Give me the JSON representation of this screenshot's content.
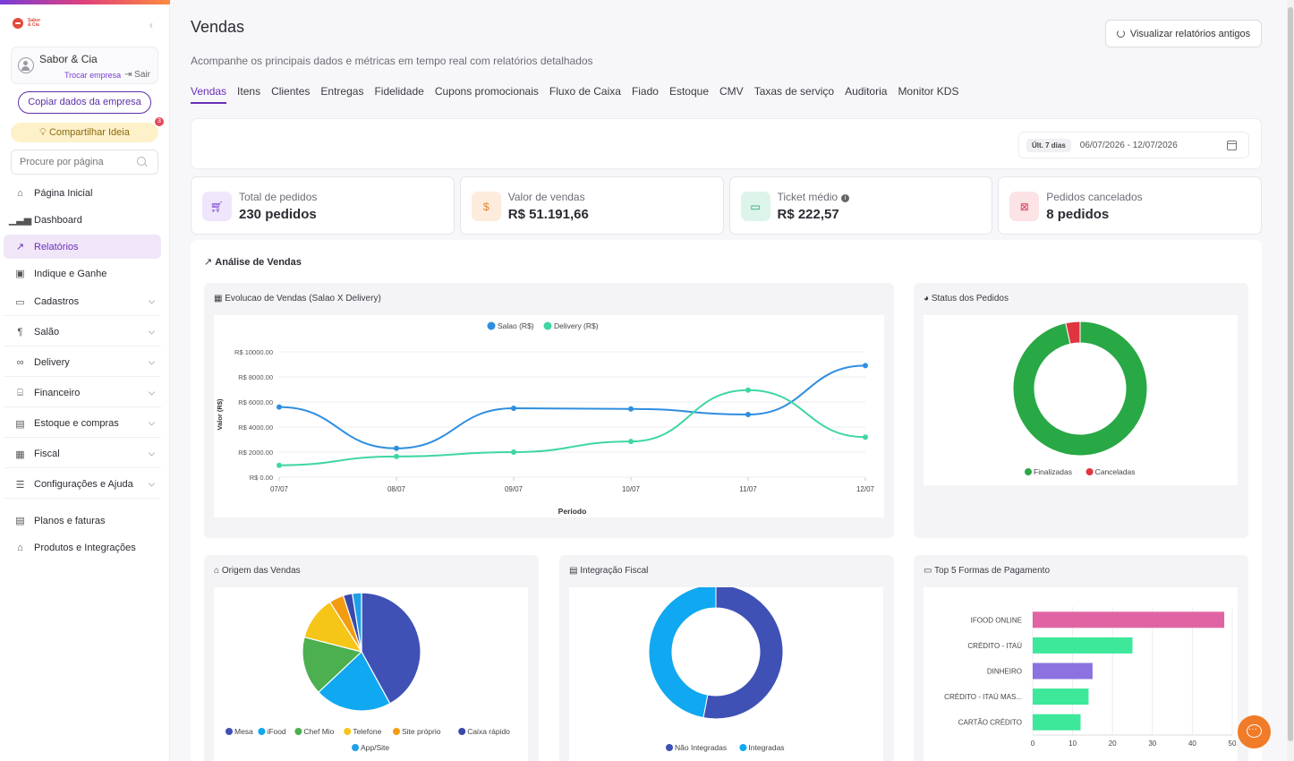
{
  "sidebar": {
    "brand_text": "Sabor & Cia",
    "company_name": "Sabor & Cia",
    "switch_label": "Trocar empresa",
    "exit_label": "Sair",
    "copy_label": "Copiar dados da empresa",
    "share_label": "Compartilhar Ideia",
    "share_badge": "3",
    "search_placeholder": "Procure por página",
    "items": [
      {
        "label": "Página Inicial"
      },
      {
        "label": "Dashboard"
      },
      {
        "label": "Relatórios"
      },
      {
        "label": "Indique e Ganhe"
      },
      {
        "label": "Cadastros"
      },
      {
        "label": "Salão"
      },
      {
        "label": "Delivery"
      },
      {
        "label": "Financeiro"
      },
      {
        "label": "Estoque e compras"
      },
      {
        "label": "Fiscal"
      },
      {
        "label": "Configurações e Ajuda"
      },
      {
        "label": "Planos e faturas"
      },
      {
        "label": "Produtos e Integrações"
      }
    ]
  },
  "header": {
    "title": "Vendas",
    "subtitle": "Acompanhe os principais dados e métricas em tempo real com relatórios detalhados",
    "old_reports_label": "Visualizar relatórios antigos"
  },
  "tabs": [
    "Vendas",
    "Itens",
    "Clientes",
    "Entregas",
    "Fidelidade",
    "Cupons promocionais",
    "Fluxo de Caixa",
    "Fiado",
    "Estoque",
    "CMV",
    "Taxas de serviço",
    "Auditoria",
    "Monitor KDS"
  ],
  "filter": {
    "chip": "Últ. 7 dias",
    "range": "06/07/2026 - 12/07/2026"
  },
  "kpis": [
    {
      "label": "Total de pedidos",
      "value": "230 pedidos",
      "color": "#7a3dd8",
      "bg": "#efe6fb"
    },
    {
      "label": "Valor de vendas",
      "value": "R$ 51.191,66",
      "color": "#e0832a",
      "bg": "#fdebdc"
    },
    {
      "label": "Ticket médio",
      "value": "R$ 222,57",
      "color": "#1f9a73",
      "bg": "#dcf4ea"
    },
    {
      "label": "Pedidos cancelados",
      "value": "8 pedidos",
      "color": "#d6425a",
      "bg": "#fbe3e6"
    }
  ],
  "analysis": {
    "title": "Análise de Vendas",
    "evolution_title": "Evolucao de Vendas (Salao X Delivery)",
    "status_title": "Status dos Pedidos",
    "origin_title": "Origem das Vendas",
    "fiscal_title": "Integração Fiscal",
    "payment_title": "Top 5 Formas de Pagamento"
  },
  "chart_data": [
    {
      "type": "line",
      "title": "Evolucao de Vendas (Salao X Delivery)",
      "xlabel": "Periodo",
      "ylabel": "Valor (R$)",
      "x": [
        "07/07",
        "08/07",
        "09/07",
        "10/07",
        "11/07",
        "12/07"
      ],
      "ylim": [
        0,
        10000
      ],
      "yticks": [
        "R$ 0.00",
        "R$ 2000.00",
        "R$ 4000.00",
        "R$ 6000.00",
        "R$ 8000.00",
        "R$ 10000.00"
      ],
      "series": [
        {
          "name": "Salao (R$)",
          "color": "#2e8ee0",
          "values": [
            5600,
            2300,
            5500,
            5450,
            5000,
            8900
          ]
        },
        {
          "name": "Delivery (R$)",
          "color": "#3fd6a3",
          "values": [
            950,
            1650,
            2000,
            2850,
            6950,
            3200
          ]
        }
      ]
    },
    {
      "type": "pie",
      "title": "Status dos Pedidos",
      "labels": [
        "Finalizadas",
        "Canceladas"
      ],
      "values": [
        222,
        8
      ],
      "colors": [
        "#29a846",
        "#e0343f"
      ]
    },
    {
      "type": "pie",
      "title": "Origem das Vendas",
      "labels": [
        "Mesa",
        "iFood",
        "Chef Mio",
        "Telefone",
        "Site próprio",
        "Caixa rápido",
        "App/Site"
      ],
      "values": [
        42,
        21,
        16,
        12,
        4,
        2.5,
        2.5
      ],
      "colors": [
        "#3f51b5",
        "#10a8f0",
        "#4caf50",
        "#f5c518",
        "#f39c12",
        "#3949ab",
        "#1ea0e8"
      ]
    },
    {
      "type": "pie",
      "title": "Integração Fiscal",
      "labels": [
        "Não Integradas",
        "Integradas"
      ],
      "values": [
        53,
        47
      ],
      "colors": [
        "#3f51b5",
        "#10a8f0"
      ]
    },
    {
      "type": "bar",
      "title": "Top 5 Formas de Pagamento",
      "categories": [
        "IFOOD ONLINE",
        "CRÉDITO - ITAÚ",
        "DINHEIRO",
        "CRÉDITO - ITAÚ MAS...",
        "CARTÃO CRÉDITO"
      ],
      "values": [
        48,
        25,
        15,
        14,
        12
      ],
      "colors": [
        "#e064a3",
        "#3de89a",
        "#8b72e0",
        "#3de89a",
        "#3de89a"
      ],
      "xlim": [
        0,
        50
      ],
      "xticks": [
        "0",
        "10",
        "20",
        "30",
        "40",
        "50"
      ]
    }
  ]
}
